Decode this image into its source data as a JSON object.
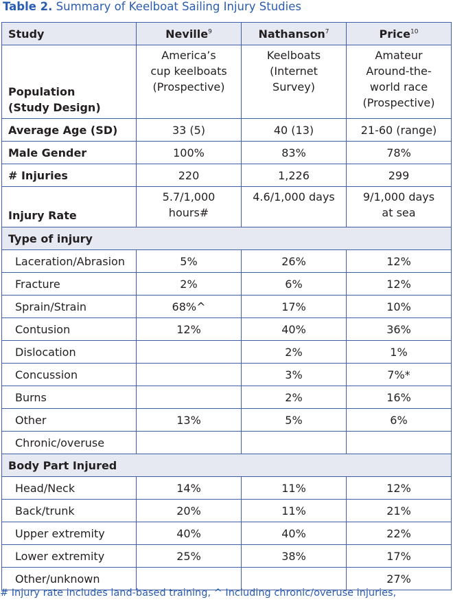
{
  "title": {
    "label": "Table 2.",
    "text": "Summary of Keelboat Sailing Injury Studies"
  },
  "columns": {
    "study": "Study",
    "neville": "Neville",
    "neville_ref": "9",
    "nathanson": "Nathanson",
    "nathanson_ref": "7",
    "price": "Price",
    "price_ref": "10"
  },
  "population": {
    "label_line1": "Population",
    "label_line2": "(Study Design)",
    "neville": [
      "America’s",
      "cup keelboats",
      "(Prospective)"
    ],
    "nathanson": [
      "Keelboats",
      "(Internet",
      "Survey)"
    ],
    "price": [
      "Amateur",
      "Around-the-",
      "world race",
      "(Prospective)"
    ]
  },
  "rows": [
    {
      "label": "Average Age (SD)",
      "neville": "33 (5)",
      "nathanson": "40 (13)",
      "price": "21-60 (range)"
    },
    {
      "label": "Male Gender",
      "neville": "100%",
      "nathanson": "83%",
      "price": "78%"
    },
    {
      "label": "# Injuries",
      "neville": "220",
      "nathanson": "1,226",
      "price": "299"
    }
  ],
  "injury_rate": {
    "label": "Injury Rate",
    "neville": [
      "5.7/1,000",
      "hours#"
    ],
    "nathanson": [
      "4.6/1,000 days"
    ],
    "price": [
      "9/1,000 days",
      "at sea"
    ]
  },
  "type_of_injury": {
    "heading": "Type of injury",
    "rows": [
      {
        "label": "Laceration/Abrasion",
        "neville": "5%",
        "nathanson": "26%",
        "price": "12%"
      },
      {
        "label": "Fracture",
        "neville": "2%",
        "nathanson": "6%",
        "price": "12%"
      },
      {
        "label": "Sprain/Strain",
        "neville": "68%^",
        "nathanson": "17%",
        "price": "10%"
      },
      {
        "label": "Contusion",
        "neville": "12%",
        "nathanson": "40%",
        "price": "36%"
      },
      {
        "label": "Dislocation",
        "neville": "",
        "nathanson": "2%",
        "price": "1%"
      },
      {
        "label": "Concussion",
        "neville": "",
        "nathanson": "3%",
        "price": "7%*"
      },
      {
        "label": "Burns",
        "neville": "",
        "nathanson": "2%",
        "price": "16%"
      },
      {
        "label": "Other",
        "neville": "13%",
        "nathanson": "5%",
        "price": "6%"
      },
      {
        "label": "Chronic/overuse",
        "neville": "",
        "nathanson": "",
        "price": ""
      }
    ]
  },
  "body_part": {
    "heading": "Body Part Injured",
    "rows": [
      {
        "label": "Head/Neck",
        "neville": "14%",
        "nathanson": "11%",
        "price": "12%"
      },
      {
        "label": "Back/trunk",
        "neville": "20%",
        "nathanson": "11%",
        "price": "21%"
      },
      {
        "label": "Upper extremity",
        "neville": "40%",
        "nathanson": "40%",
        "price": "22%"
      },
      {
        "label": "Lower extremity",
        "neville": "25%",
        "nathanson": "38%",
        "price": "17%"
      },
      {
        "label": "Other/unknown",
        "neville": "",
        "nathanson": "",
        "price": "27%"
      }
    ]
  },
  "footnote": "# Injury rate includes land-based training, ^ Including chronic/overuse injuries,"
}
